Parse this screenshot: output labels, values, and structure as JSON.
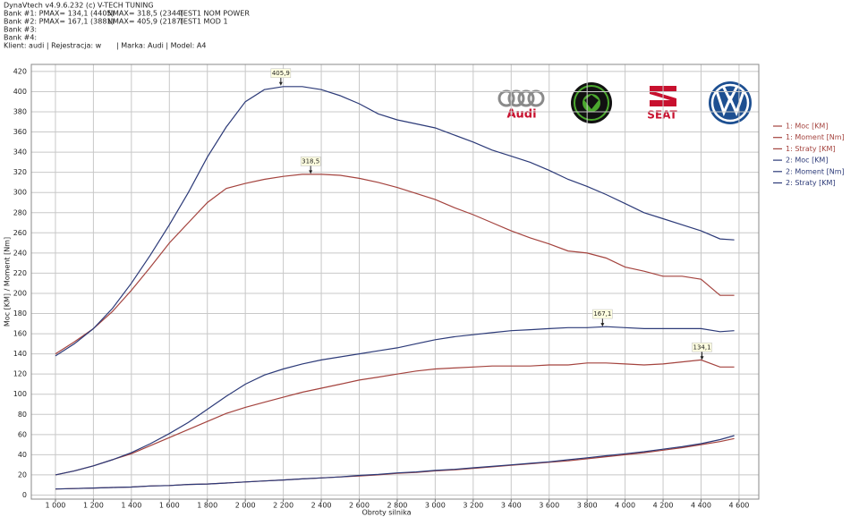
{
  "chart_data": {
    "type": "line",
    "header": [
      [
        "DynaVtech v4.9.6.232 (c) V-TECH TUNING"
      ],
      [
        "Bank #1:  PMAX= 134,1 (4405)",
        "NMAX= 318,5 (2344)",
        "TEST1 NOM POWER"
      ],
      [
        "Bank #2:  PMAX= 167,1 (3881)",
        "NMAX= 405,9 (2187)",
        "TEST1 MOD 1"
      ],
      [
        "Bank #3:"
      ],
      [
        "Bank #4:"
      ],
      [
        "Klient: audi | Rejestracja: w",
        "| Marka: Audi | Model: A4"
      ]
    ],
    "logos": [
      "Audi",
      "SEAT"
    ],
    "x_label": "Obroty silnika",
    "y_label": "Moc [KM] / Moment [Nm]",
    "grid": true,
    "legend": "right",
    "xlim": [
      873,
      4704
    ],
    "ylim": [
      -4,
      427
    ],
    "xticks": [
      {
        "value": 1000,
        "label": "1 000"
      },
      {
        "value": 1200,
        "label": "1 200"
      },
      {
        "value": 1400,
        "label": "1 400"
      },
      {
        "value": 1600,
        "label": "1 600"
      },
      {
        "value": 1800,
        "label": "1 800"
      },
      {
        "value": 2000,
        "label": "2 000"
      },
      {
        "value": 2200,
        "label": "2 200"
      },
      {
        "value": 2400,
        "label": "2 400"
      },
      {
        "value": 2600,
        "label": "2 600"
      },
      {
        "value": 2800,
        "label": "2 800"
      },
      {
        "value": 3000,
        "label": "3 000"
      },
      {
        "value": 3200,
        "label": "3 200"
      },
      {
        "value": 3400,
        "label": "3 400"
      },
      {
        "value": 3600,
        "label": "3 600"
      },
      {
        "value": 3800,
        "label": "3 800"
      },
      {
        "value": 4000,
        "label": "4 000"
      },
      {
        "value": 4200,
        "label": "4 200"
      },
      {
        "value": 4400,
        "label": "4 400"
      },
      {
        "value": 4600,
        "label": "4 600"
      }
    ],
    "yticks": [
      0,
      20,
      40,
      60,
      80,
      100,
      120,
      140,
      160,
      180,
      200,
      220,
      240,
      260,
      280,
      300,
      320,
      340,
      360,
      380,
      400,
      420
    ],
    "x": [
      1000,
      1100,
      1200,
      1300,
      1400,
      1500,
      1600,
      1700,
      1800,
      1900,
      2000,
      2100,
      2200,
      2300,
      2400,
      2500,
      2600,
      2700,
      2800,
      2900,
      3000,
      3100,
      3200,
      3300,
      3400,
      3500,
      3600,
      3700,
      3800,
      3900,
      4000,
      4100,
      4200,
      4300,
      4400,
      4500,
      4575
    ],
    "series": [
      {
        "name": "1: Moc [KM]",
        "color": "#a4433e",
        "values": [
          20,
          24,
          29,
          35,
          41,
          49,
          57,
          65,
          73,
          81,
          87,
          92,
          97,
          102,
          106,
          110,
          114,
          117,
          120,
          123,
          125,
          126,
          127,
          128,
          128,
          128,
          129,
          129,
          131,
          131,
          130,
          129,
          130,
          132,
          134,
          127,
          127
        ]
      },
      {
        "name": "1: Moment [Nm]",
        "color": "#a4433e",
        "values": [
          140,
          152,
          165,
          182,
          203,
          226,
          250,
          270,
          290,
          304,
          309,
          313,
          316,
          318,
          318,
          317,
          314,
          310,
          305,
          299,
          293,
          285,
          278,
          270,
          262,
          255,
          249,
          242,
          240,
          235,
          226,
          222,
          217,
          217,
          214,
          198,
          198
        ]
      },
      {
        "name": "1: Straty [KM]",
        "color": "#a4433e",
        "values": [
          6,
          6.5,
          7,
          7.5,
          8,
          9,
          9.5,
          10.5,
          11,
          12,
          13,
          14,
          15,
          16,
          17,
          18,
          19,
          20,
          21.5,
          22.5,
          24,
          25,
          26.5,
          28,
          29.5,
          31,
          32.5,
          34,
          36,
          38,
          40,
          42,
          44.5,
          47,
          50,
          53,
          56
        ]
      },
      {
        "name": "2: Moc [KM]",
        "color": "#2c3a78",
        "values": [
          20,
          24,
          29,
          35,
          42,
          51,
          61,
          72,
          85,
          98,
          110,
          119,
          125,
          130,
          134,
          137,
          140,
          143,
          146,
          150,
          154,
          157,
          159,
          161,
          163,
          164,
          165,
          166,
          166,
          167,
          166,
          165,
          165,
          165,
          165,
          162,
          163
        ]
      },
      {
        "name": "2: Moment [Nm]",
        "color": "#2c3a78",
        "values": [
          138,
          150,
          165,
          185,
          210,
          238,
          268,
          300,
          335,
          365,
          390,
          402,
          405,
          405,
          402,
          396,
          388,
          378,
          372,
          368,
          364,
          357,
          350,
          342,
          336,
          330,
          322,
          313,
          306,
          298,
          289,
          280,
          274,
          268,
          262,
          254,
          253
        ]
      },
      {
        "name": "2: Straty [KM]",
        "color": "#2c3a78",
        "values": [
          6,
          6.5,
          7,
          7.5,
          8,
          9,
          9.5,
          10.5,
          11,
          12,
          13,
          14,
          15,
          16,
          17,
          18,
          19.5,
          20.5,
          22,
          23,
          24.5,
          25.5,
          27,
          28.5,
          30,
          31.5,
          33,
          35,
          37,
          39,
          41,
          43,
          45.5,
          48,
          51,
          55,
          59
        ]
      }
    ],
    "annotations": [
      {
        "x": 2187,
        "y": 405.9,
        "label": "405,9"
      },
      {
        "x": 2344,
        "y": 318.5,
        "label": "318,5"
      },
      {
        "x": 3881,
        "y": 167.1,
        "label": "167,1"
      },
      {
        "x": 4405,
        "y": 134.1,
        "label": "134,1"
      }
    ]
  }
}
